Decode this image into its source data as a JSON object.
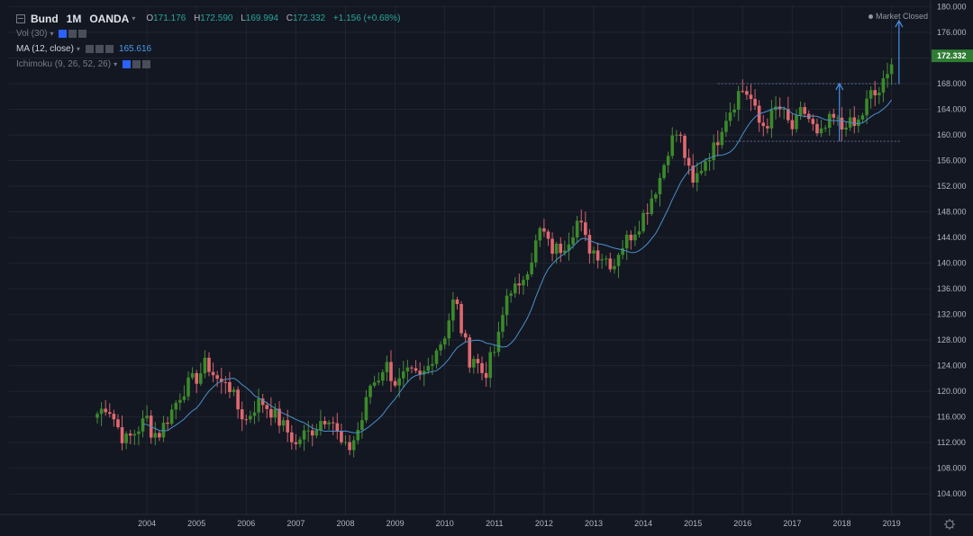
{
  "symbol": {
    "name": "Bund",
    "interval": "1M",
    "broker": "OANDA",
    "open_label": "O",
    "open": "171.176",
    "high_label": "H",
    "high": "172.590",
    "low_label": "L",
    "low": "169.994",
    "close_label": "C",
    "close": "172.332",
    "change": "+1.156 (+0.68%)"
  },
  "indicators": [
    {
      "label": "Vol (30)",
      "value": "",
      "active": false
    },
    {
      "label": "MA (12, close)",
      "value": "165.616",
      "active": true
    },
    {
      "label": "Ichimoku (9, 26, 52, 26)",
      "value": "",
      "active": false
    }
  ],
  "market_status": "Market Closed",
  "last_price_label": "172.332",
  "colors": {
    "up": "#26a69a",
    "up_body": "#3a8a2a",
    "down": "#ef5350",
    "down_body": "#e0696f",
    "ma": "#4a90c8",
    "annotation": "#4a90e8",
    "grid": "#1f2430",
    "axis_text": "#b2b5be",
    "price_tag": "#2e7d32"
  },
  "chart_data": {
    "type": "candlestick",
    "title": "Bund · 1M · OANDA",
    "x_tick_labels": [
      "2004",
      "2005",
      "2006",
      "2007",
      "2008",
      "2009",
      "2010",
      "2011",
      "2012",
      "2013",
      "2014",
      "2015",
      "2016",
      "2017",
      "2018",
      "2019"
    ],
    "y_tick_labels": [
      "104.000",
      "108.000",
      "112.000",
      "116.000",
      "120.000",
      "124.000",
      "128.000",
      "132.000",
      "136.000",
      "140.000",
      "144.000",
      "148.000",
      "152.000",
      "156.000",
      "160.000",
      "164.000",
      "168.000",
      "172.000",
      "176.000",
      "180.000"
    ],
    "ylim": [
      100.8,
      180.2
    ],
    "x_start_year": 2003.5,
    "x_end_year": 2019.75,
    "monthly_close_anchors": [
      [
        2003.5,
        116.5
      ],
      [
        2003.7,
        118.0
      ],
      [
        2003.85,
        115.5
      ],
      [
        2004.0,
        113.0
      ],
      [
        2004.1,
        112.3
      ],
      [
        2004.3,
        114.0
      ],
      [
        2004.5,
        115.8
      ],
      [
        2004.6,
        113.5
      ],
      [
        2004.75,
        113.5
      ],
      [
        2005.0,
        117.0
      ],
      [
        2005.2,
        120.0
      ],
      [
        2005.4,
        121.5
      ],
      [
        2005.55,
        122.5
      ],
      [
        2005.7,
        124.5
      ],
      [
        2005.85,
        122.5
      ],
      [
        2006.0,
        121.0
      ],
      [
        2006.1,
        122.2
      ],
      [
        2006.2,
        120.0
      ],
      [
        2006.35,
        117.0
      ],
      [
        2006.5,
        115.5
      ],
      [
        2006.65,
        117.5
      ],
      [
        2006.8,
        118.5
      ],
      [
        2007.0,
        117.0
      ],
      [
        2007.2,
        115.0
      ],
      [
        2007.4,
        113.0
      ],
      [
        2007.5,
        111.5
      ],
      [
        2007.6,
        113.0
      ],
      [
        2007.75,
        113.5
      ],
      [
        2007.9,
        114.5
      ],
      [
        2008.0,
        115.5
      ],
      [
        2008.2,
        116.5
      ],
      [
        2008.3,
        114.0
      ],
      [
        2008.45,
        111.0
      ],
      [
        2008.55,
        110.8
      ],
      [
        2008.7,
        113.0
      ],
      [
        2008.85,
        116.0
      ],
      [
        2009.0,
        121.0
      ],
      [
        2009.15,
        122.0
      ],
      [
        2009.3,
        124.5
      ],
      [
        2009.45,
        122.0
      ],
      [
        2009.55,
        121.0
      ],
      [
        2009.7,
        122.5
      ],
      [
        2009.85,
        122.5
      ],
      [
        2010.0,
        122.0
      ],
      [
        2010.15,
        123.5
      ],
      [
        2010.3,
        126.5
      ],
      [
        2010.45,
        128.0
      ],
      [
        2010.55,
        130.0
      ],
      [
        2010.65,
        134.0
      ],
      [
        2010.75,
        133.0
      ],
      [
        2010.85,
        129.0
      ],
      [
        2011.0,
        125.0
      ],
      [
        2011.1,
        125.5
      ],
      [
        2011.2,
        123.5
      ],
      [
        2011.3,
        122.5
      ],
      [
        2011.45,
        125.5
      ],
      [
        2011.55,
        127.0
      ],
      [
        2011.65,
        131.0
      ],
      [
        2011.75,
        135.0
      ],
      [
        2011.85,
        136.5
      ],
      [
        2012.0,
        135.5
      ],
      [
        2012.1,
        138.5
      ],
      [
        2012.2,
        140.0
      ],
      [
        2012.3,
        142.0
      ],
      [
        2012.4,
        145.0
      ],
      [
        2012.5,
        144.5
      ],
      [
        2012.6,
        142.5
      ],
      [
        2012.7,
        142.0
      ],
      [
        2012.85,
        142.5
      ],
      [
        2013.0,
        144.0
      ],
      [
        2013.1,
        145.5
      ],
      [
        2013.2,
        147.0
      ],
      [
        2013.3,
        144.0
      ],
      [
        2013.4,
        142.5
      ],
      [
        2013.5,
        142.0
      ],
      [
        2013.6,
        141.5
      ],
      [
        2013.7,
        141.0
      ],
      [
        2013.8,
        140.5
      ],
      [
        2013.9,
        139.5
      ],
      [
        2014.0,
        142.0
      ],
      [
        2014.1,
        143.0
      ],
      [
        2014.2,
        144.0
      ],
      [
        2014.3,
        145.0
      ],
      [
        2014.4,
        146.0
      ],
      [
        2014.5,
        147.5
      ],
      [
        2014.6,
        149.0
      ],
      [
        2014.7,
        151.0
      ],
      [
        2014.8,
        152.5
      ],
      [
        2014.9,
        155.0
      ],
      [
        2015.0,
        158.0
      ],
      [
        2015.1,
        159.5
      ],
      [
        2015.2,
        160.5
      ],
      [
        2015.3,
        158.0
      ],
      [
        2015.4,
        154.5
      ],
      [
        2015.5,
        152.0
      ],
      [
        2015.6,
        154.0
      ],
      [
        2015.7,
        155.5
      ],
      [
        2015.8,
        157.0
      ],
      [
        2015.9,
        157.5
      ],
      [
        2016.0,
        159.5
      ],
      [
        2016.1,
        162.0
      ],
      [
        2016.2,
        163.5
      ],
      [
        2016.3,
        164.5
      ],
      [
        2016.4,
        166.5
      ],
      [
        2016.5,
        167.0
      ],
      [
        2016.6,
        166.5
      ],
      [
        2016.7,
        165.0
      ],
      [
        2016.8,
        162.0
      ],
      [
        2016.9,
        161.5
      ],
      [
        2017.0,
        162.0
      ],
      [
        2017.1,
        163.0
      ],
      [
        2017.2,
        164.5
      ],
      [
        2017.3,
        163.5
      ],
      [
        2017.4,
        162.0
      ],
      [
        2017.5,
        161.0
      ],
      [
        2017.6,
        162.0
      ],
      [
        2017.7,
        164.0
      ],
      [
        2017.8,
        163.0
      ],
      [
        2017.9,
        161.5
      ],
      [
        2018.0,
        159.5
      ],
      [
        2018.1,
        160.0
      ],
      [
        2018.2,
        161.5
      ],
      [
        2018.3,
        162.5
      ],
      [
        2018.4,
        162.0
      ],
      [
        2018.5,
        161.0
      ],
      [
        2018.6,
        162.5
      ],
      [
        2018.7,
        161.0
      ],
      [
        2018.8,
        161.5
      ],
      [
        2018.9,
        163.0
      ],
      [
        2019.0,
        165.0
      ],
      [
        2019.1,
        166.5
      ],
      [
        2019.2,
        166.0
      ],
      [
        2019.3,
        167.5
      ],
      [
        2019.4,
        168.5
      ],
      [
        2019.5,
        171.0
      ],
      [
        2019.55,
        172.332
      ]
    ],
    "moving_average": {
      "name": "MA (12, close)",
      "last_value": 165.616
    },
    "annotations": {
      "upper_level": 168.0,
      "lower_level": 159.0,
      "range_x": [
        2016.0,
        2019.7
      ],
      "arrow1": {
        "x": 2018.45,
        "from": 159.0,
        "to": 168.0
      },
      "arrow2": {
        "x": 2019.65,
        "from": 168.0,
        "to": 177.8
      }
    },
    "grid": true
  }
}
